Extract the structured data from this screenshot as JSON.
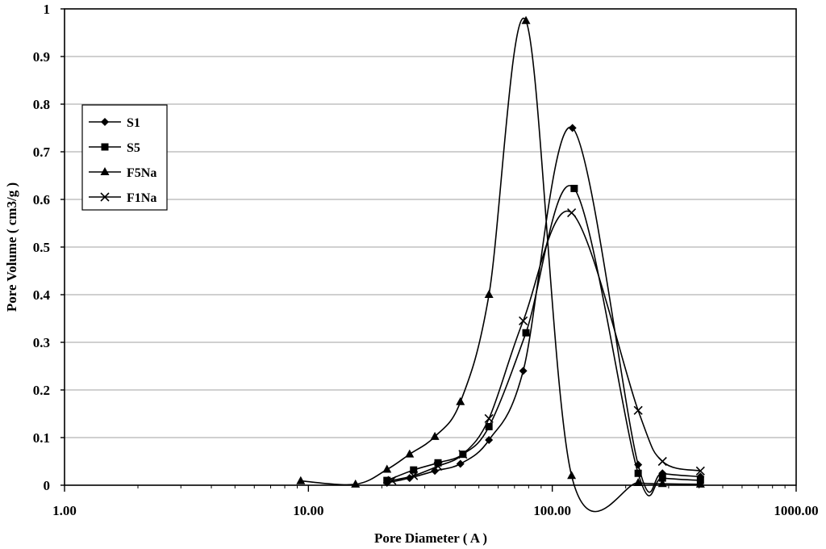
{
  "chart_data": {
    "type": "scatter",
    "title": "",
    "xlabel": "Pore Diameter ( A )",
    "ylabel": "Pore Volume ( cm3/g )",
    "x_scale": "log",
    "xlim": [
      1,
      1000
    ],
    "ylim": [
      0,
      1
    ],
    "x_ticks": [
      "1.00",
      "10.00",
      "100.00",
      "1000.00"
    ],
    "y_ticks": [
      "0",
      "0.1",
      "0.2",
      "0.3",
      "0.4",
      "0.5",
      "0.6",
      "0.7",
      "0.8",
      "0.9",
      "1"
    ],
    "grid": "horizontal",
    "legend_position": "upper-left",
    "series": [
      {
        "name": "S1",
        "marker": "diamond",
        "x": [
          21,
          26,
          33,
          42,
          55,
          76,
          121,
          225,
          283,
          405
        ],
        "y": [
          0.005,
          0.015,
          0.03,
          0.045,
          0.095,
          0.24,
          0.75,
          0.043,
          0.025,
          0.018
        ]
      },
      {
        "name": "S5",
        "marker": "square",
        "x": [
          21,
          27,
          34,
          43,
          55,
          78,
          123,
          225,
          283,
          405
        ],
        "y": [
          0.01,
          0.032,
          0.047,
          0.065,
          0.123,
          0.32,
          0.623,
          0.025,
          0.015,
          0.01
        ]
      },
      {
        "name": "F5Na",
        "marker": "triangle",
        "x": [
          9.3,
          15.6,
          21,
          26,
          33,
          42,
          55,
          78,
          120,
          225,
          283,
          405
        ],
        "y": [
          0.009,
          0.002,
          0.033,
          0.065,
          0.102,
          0.175,
          0.4,
          0.975,
          0.02,
          0.005,
          0.003,
          0.002
        ]
      },
      {
        "name": "F1Na",
        "marker": "x",
        "x": [
          22,
          27,
          34,
          43,
          55,
          76,
          120,
          225,
          283,
          405
        ],
        "y": [
          0.01,
          0.02,
          0.04,
          0.065,
          0.14,
          0.345,
          0.572,
          0.157,
          0.05,
          0.03
        ]
      }
    ]
  }
}
